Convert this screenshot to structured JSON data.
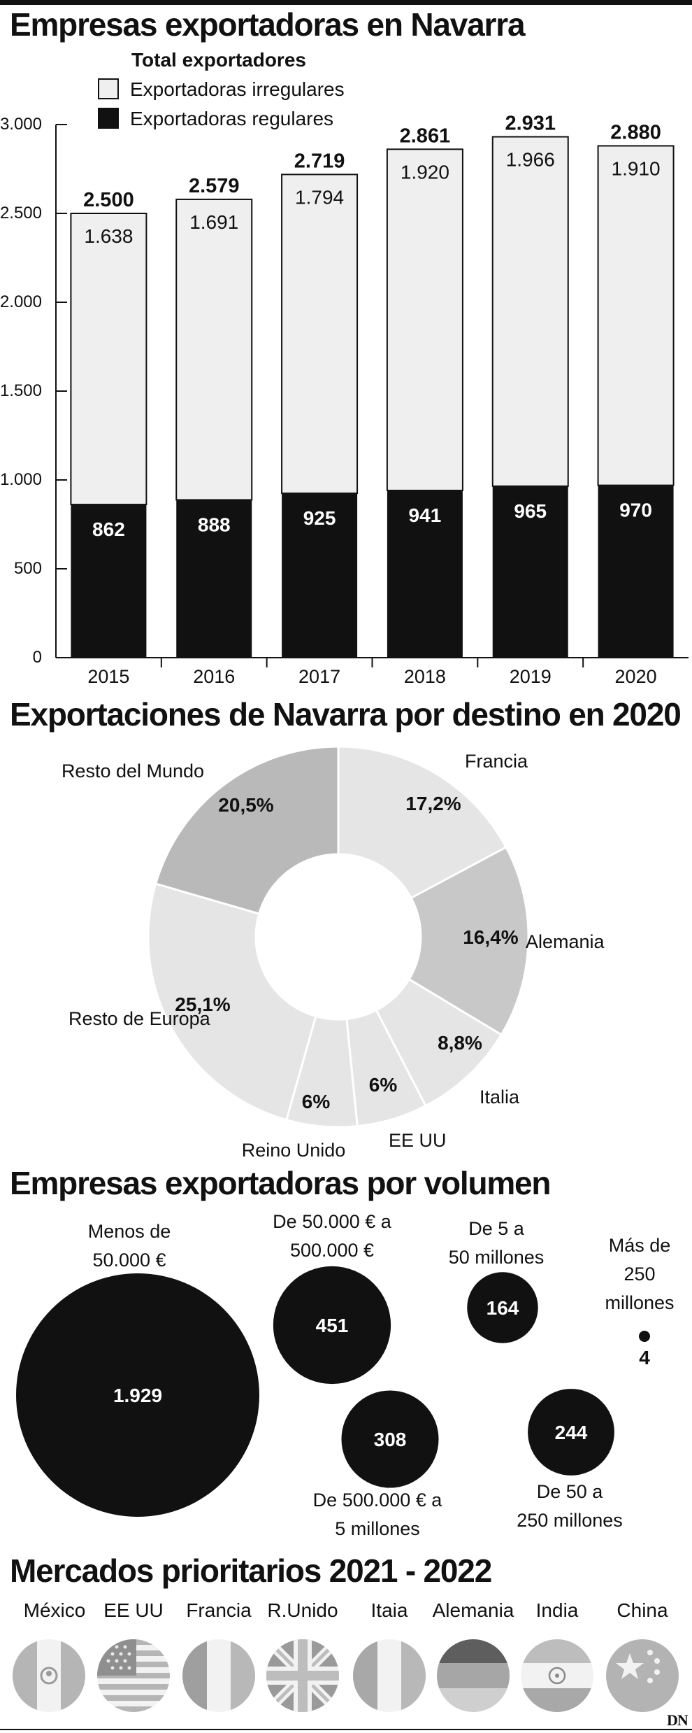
{
  "titles": {
    "exporters": "Empresas exportadoras en Navarra",
    "destinations": "Exportaciones de Navarra por destino en 2020",
    "volume": "Empresas exportadoras por volumen",
    "markets": "Mercados prioritarios 2021 - 2022"
  },
  "legend": {
    "title": "Total exportadores",
    "irregular": "Exportadoras irregulares",
    "regular": "Exportadoras regulares"
  },
  "colors": {
    "regular": "#111111",
    "irregular": "#efefef",
    "donut_light": "#e5e5e5",
    "donut_mid": "#c8c8c8",
    "donut_dark": "#b9b9b9",
    "flag": "#c4c4c4"
  },
  "chart_data": [
    {
      "type": "bar",
      "stacked": true,
      "categories": [
        "2015",
        "2016",
        "2017",
        "2018",
        "2019",
        "2020"
      ],
      "series": [
        {
          "name": "Exportadoras regulares",
          "values": [
            862,
            888,
            925,
            941,
            965,
            970
          ]
        },
        {
          "name": "Exportadoras irregulares",
          "values": [
            1638,
            1691,
            1794,
            1920,
            1966,
            1910
          ]
        }
      ],
      "totals": [
        2500,
        2579,
        2719,
        2861,
        2931,
        2880
      ],
      "value_labels": {
        "regular": [
          "862",
          "888",
          "925",
          "941",
          "965",
          "970"
        ],
        "irregular": [
          "1.638",
          "1.691",
          "1.794",
          "1.920",
          "1.966",
          "1.910"
        ],
        "totals": [
          "2.500",
          "2.579",
          "2.719",
          "2.861",
          "2.931",
          "2.880"
        ]
      },
      "ylim": [
        0,
        3000
      ],
      "yticks": [
        0,
        500,
        1000,
        1500,
        2000,
        2500,
        3000
      ],
      "ytick_labels": [
        "0",
        "500",
        "1.000",
        "1.500",
        "2.000",
        "2.500",
        "3.000"
      ],
      "legend": "top-left",
      "grid": false
    },
    {
      "type": "pie",
      "donut": true,
      "slices": [
        {
          "label": "Francia",
          "value": 17.2,
          "display": "17,2%"
        },
        {
          "label": "Alemania",
          "value": 16.4,
          "display": "16,4%"
        },
        {
          "label": "Italia",
          "value": 8.8,
          "display": "8,8%"
        },
        {
          "label": "EE UU",
          "value": 6,
          "display": "6%"
        },
        {
          "label": "Reino Unido",
          "value": 6,
          "display": "6%"
        },
        {
          "label": "Resto de Europa",
          "value": 25.1,
          "display": "25,1%"
        },
        {
          "label": "Resto del Mundo",
          "value": 20.5,
          "display": "20,5%"
        }
      ]
    },
    {
      "type": "bubble",
      "items": [
        {
          "label_lines": [
            "Menos de",
            "50.000 €"
          ],
          "value": 1929,
          "display": "1.929"
        },
        {
          "label_lines": [
            "De 50.000 € a",
            "500.000 €"
          ],
          "value": 451,
          "display": "451"
        },
        {
          "label_lines": [
            "De 500.000 € a",
            "5 millones"
          ],
          "value": 308,
          "display": "308"
        },
        {
          "label_lines": [
            "De 5 a",
            "50 millones"
          ],
          "value": 164,
          "display": "164"
        },
        {
          "label_lines": [
            "De 50 a",
            "250 millones"
          ],
          "value": 244,
          "display": "244"
        },
        {
          "label_lines": [
            "Más de",
            "250",
            "millones"
          ],
          "value": 4,
          "display": "4"
        }
      ]
    }
  ],
  "markets": [
    {
      "name": "México",
      "icon": "mexico-flag-icon"
    },
    {
      "name": "EE UU",
      "icon": "usa-flag-icon"
    },
    {
      "name": "Francia",
      "icon": "france-flag-icon"
    },
    {
      "name": "R.Unido",
      "icon": "uk-flag-icon"
    },
    {
      "name": "Itaia",
      "icon": "italy-flag-icon"
    },
    {
      "name": "Alemania",
      "icon": "germany-flag-icon"
    },
    {
      "name": "India",
      "icon": "india-flag-icon"
    },
    {
      "name": "China",
      "icon": "china-flag-icon"
    }
  ],
  "logo": "DN"
}
